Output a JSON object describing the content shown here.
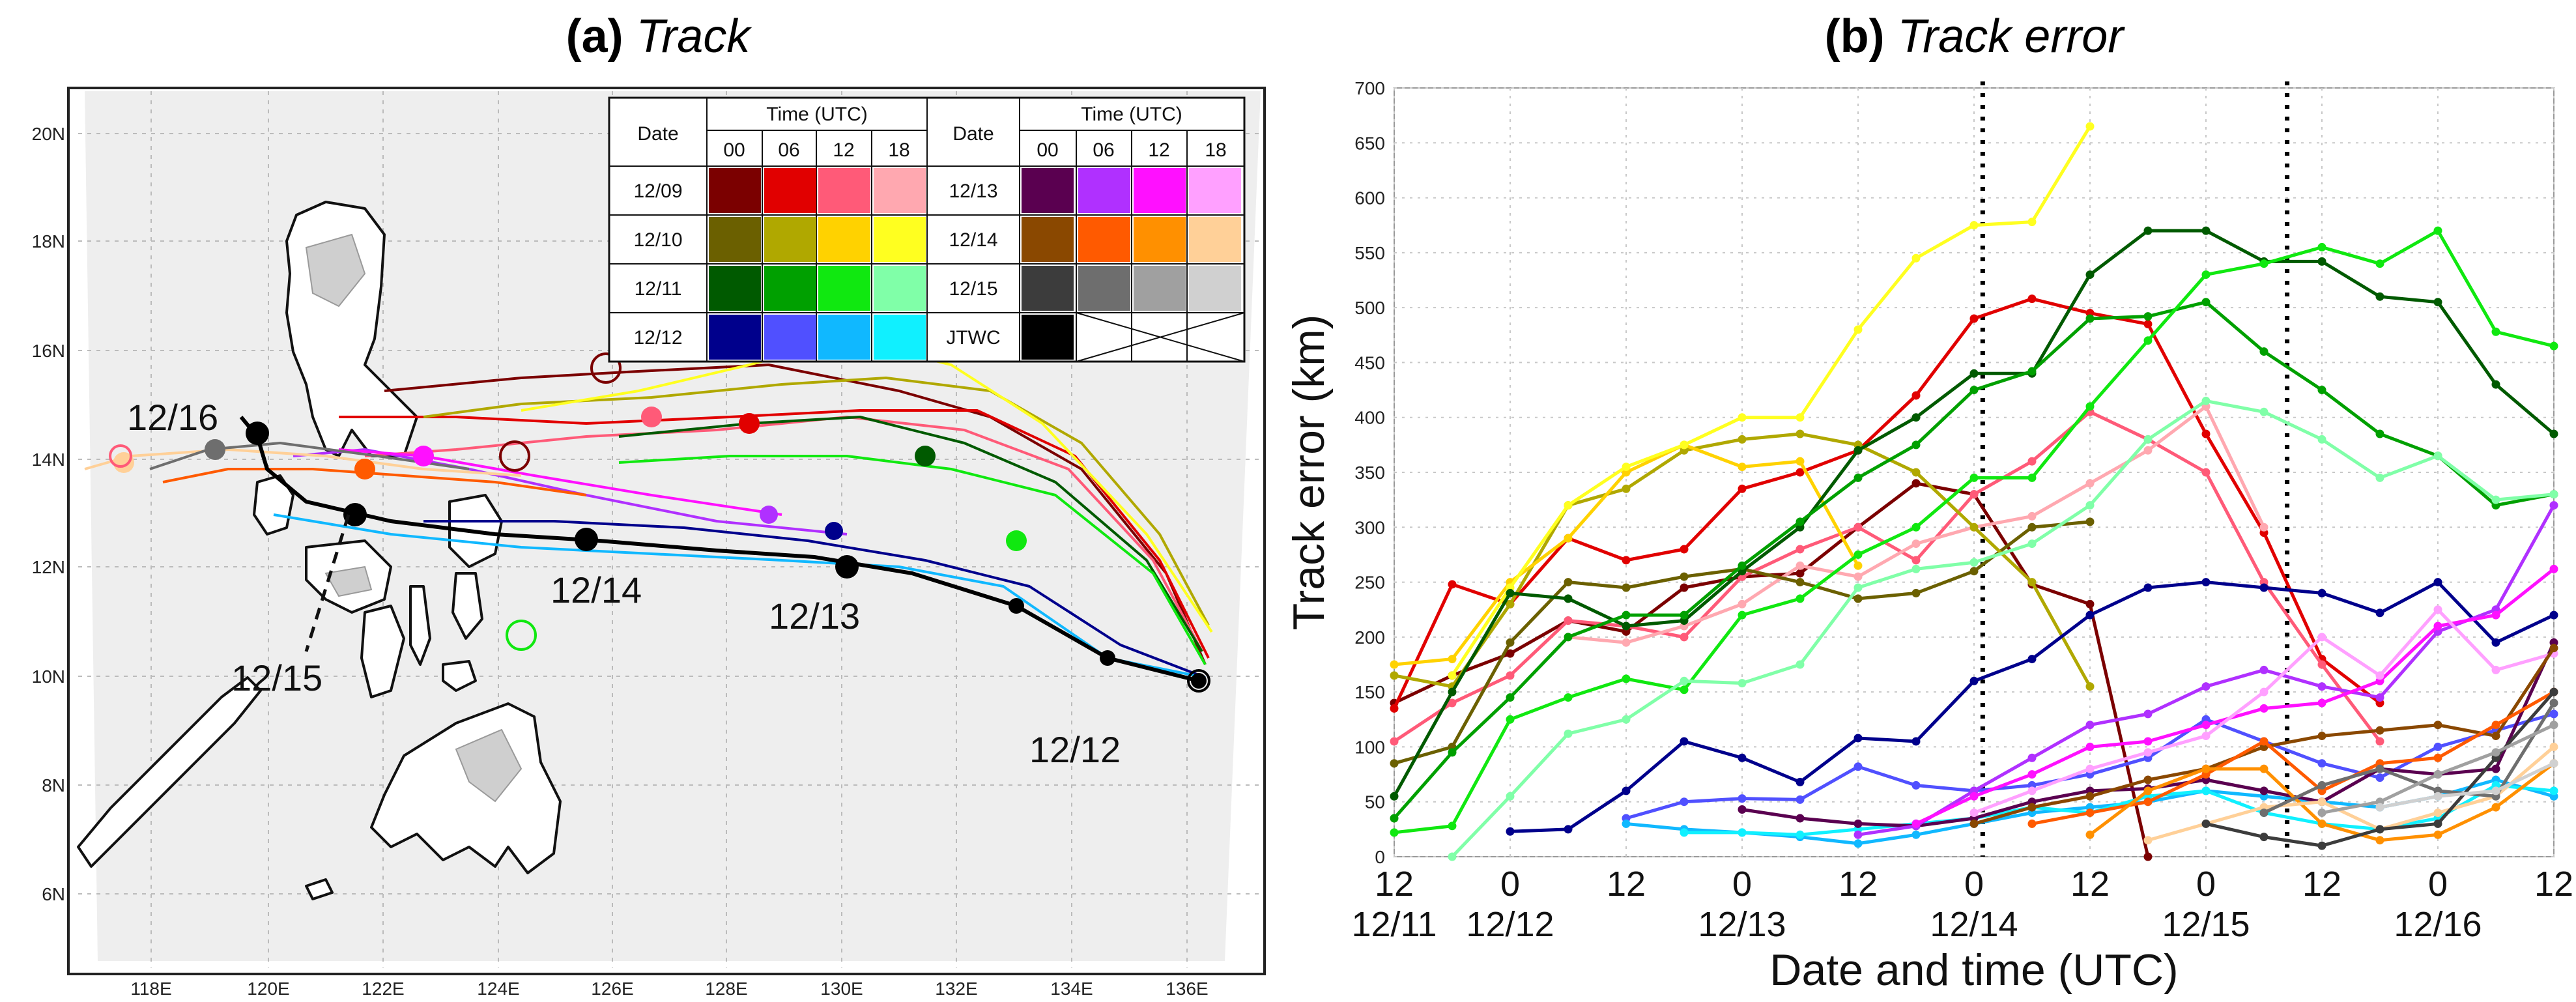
{
  "titles": {
    "a_prefix": "(a)",
    "a_name": "Track",
    "b_prefix": "(b)",
    "b_name": "Track error"
  },
  "map": {
    "lat_labels": [
      "20N",
      "18N",
      "16N",
      "14N",
      "12N",
      "10N",
      "8N",
      "6N"
    ],
    "lon_labels": [
      "118E",
      "120E",
      "122E",
      "124E",
      "126E",
      "128E",
      "130E",
      "132E",
      "134E",
      "136E"
    ],
    "annotations": [
      "12/16",
      "12/15",
      "12/14",
      "12/13",
      "12/12"
    ]
  },
  "legend_table": {
    "left": {
      "header_date": "Date",
      "header_time": "Time (UTC)",
      "hours": [
        "00",
        "06",
        "12",
        "18"
      ],
      "rows": [
        {
          "date": "12/09",
          "colors": [
            "#7b0000",
            "#e10000",
            "#ff5a78",
            "#ffa8b0"
          ]
        },
        {
          "date": "12/10",
          "colors": [
            "#6b6000",
            "#b0a800",
            "#ffd200",
            "#ffff20"
          ]
        },
        {
          "date": "12/11",
          "colors": [
            "#005a00",
            "#00a000",
            "#10e810",
            "#80ffa8"
          ]
        },
        {
          "date": "12/12",
          "colors": [
            "#00008c",
            "#5050ff",
            "#10b8ff",
            "#10f0ff"
          ]
        }
      ]
    },
    "right": {
      "header_date": "Date",
      "header_time": "Time (UTC)",
      "hours": [
        "00",
        "06",
        "12",
        "18"
      ],
      "rows": [
        {
          "date": "12/13",
          "colors": [
            "#5a0050",
            "#b030ff",
            "#ff10ff",
            "#ffa0ff"
          ]
        },
        {
          "date": "12/14",
          "colors": [
            "#8a4800",
            "#ff5a00",
            "#ff9000",
            "#ffd098"
          ]
        },
        {
          "date": "12/15",
          "colors": [
            "#3c3c3c",
            "#6e6e6e",
            "#a0a0a0",
            "#d0d0d0"
          ]
        },
        {
          "date": "JTWC",
          "colors": [
            "#000000"
          ]
        }
      ]
    }
  },
  "chart_data": {
    "type": "line",
    "title": "Track error",
    "xlabel": "Date and time (UTC)",
    "ylabel": "Track error (km)",
    "ylim": [
      0,
      700
    ],
    "xlim": [
      0,
      20
    ],
    "yticks": [
      0,
      50,
      100,
      150,
      200,
      250,
      300,
      350,
      400,
      450,
      500,
      550,
      600,
      650,
      700
    ],
    "hour_ticks": [
      {
        "x": 0,
        "label": "12"
      },
      {
        "x": 2,
        "label": "0"
      },
      {
        "x": 4,
        "label": "12"
      },
      {
        "x": 6,
        "label": "0"
      },
      {
        "x": 8,
        "label": "12"
      },
      {
        "x": 10,
        "label": "0"
      },
      {
        "x": 12,
        "label": "12"
      },
      {
        "x": 14,
        "label": "0"
      },
      {
        "x": 16,
        "label": "12"
      },
      {
        "x": 18,
        "label": "0"
      },
      {
        "x": 20,
        "label": "12"
      }
    ],
    "date_ticks": [
      {
        "x": 0,
        "label": "12/11"
      },
      {
        "x": 2,
        "label": "12/12"
      },
      {
        "x": 6,
        "label": "12/13"
      },
      {
        "x": 10,
        "label": "12/14"
      },
      {
        "x": 14,
        "label": "12/15"
      },
      {
        "x": 18,
        "label": "12/16"
      }
    ],
    "vlines": [
      10.15,
      15.4
    ],
    "x_unit_note": "x in 6-hour steps from 12/11 12 UTC",
    "series": [
      {
        "name": "12/09 00",
        "color": "#7b0000",
        "x": [
          0,
          1,
          2,
          3,
          4,
          5,
          6,
          7,
          8,
          9,
          10,
          11,
          12,
          13
        ],
        "values": [
          140,
          165,
          185,
          215,
          205,
          245,
          255,
          258,
          300,
          340,
          330,
          248,
          230,
          0
        ]
      },
      {
        "name": "12/09 06",
        "color": "#e10000",
        "x": [
          0,
          1,
          2,
          3,
          4,
          5,
          6,
          7,
          8,
          9,
          10,
          11,
          12,
          13,
          14,
          15,
          16,
          17
        ],
        "values": [
          135,
          248,
          230,
          290,
          270,
          280,
          335,
          350,
          370,
          420,
          490,
          508,
          495,
          485,
          385,
          295,
          180,
          140
        ]
      },
      {
        "name": "12/09 12",
        "color": "#ff5a78",
        "x": [
          0,
          1,
          2,
          3,
          4,
          5,
          6,
          7,
          8,
          9,
          10,
          11,
          12,
          13,
          14,
          15,
          16,
          17
        ],
        "values": [
          105,
          140,
          165,
          215,
          210,
          200,
          255,
          280,
          300,
          270,
          330,
          360,
          405,
          380,
          350,
          250,
          175,
          105
        ]
      },
      {
        "name": "12/09 18",
        "color": "#ffa8b0",
        "x": [
          3,
          4,
          5,
          6,
          7,
          8,
          9,
          10,
          11,
          12,
          13,
          14,
          15
        ],
        "values": [
          200,
          195,
          210,
          230,
          265,
          255,
          285,
          300,
          310,
          340,
          370,
          410,
          300
        ]
      },
      {
        "name": "12/10 00",
        "color": "#6b6000",
        "x": [
          0,
          1,
          2,
          3,
          4,
          5,
          6,
          7,
          8,
          9,
          10,
          11,
          12
        ],
        "values": [
          85,
          100,
          195,
          250,
          245,
          255,
          262,
          250,
          235,
          240,
          260,
          300,
          305
        ]
      },
      {
        "name": "12/10 06",
        "color": "#b0a800",
        "x": [
          0,
          1,
          2,
          3,
          4,
          5,
          6,
          7,
          8,
          9,
          10,
          11,
          12
        ],
        "values": [
          165,
          155,
          230,
          320,
          335,
          370,
          380,
          385,
          375,
          350,
          300,
          250,
          155
        ]
      },
      {
        "name": "12/10 12",
        "color": "#ffd200",
        "x": [
          0,
          1,
          2,
          3,
          4,
          5,
          6,
          7,
          8
        ],
        "values": [
          175,
          180,
          250,
          290,
          350,
          375,
          355,
          360,
          265
        ]
      },
      {
        "name": "12/10 18",
        "color": "#ffff20",
        "x": [
          1,
          2,
          3,
          4,
          5,
          6,
          7,
          8,
          9,
          10,
          11,
          12
        ],
        "values": [
          165,
          245,
          320,
          355,
          375,
          400,
          400,
          480,
          545,
          575,
          578,
          665
        ]
      },
      {
        "name": "12/11 00",
        "color": "#005a00",
        "x": [
          0,
          1,
          2,
          3,
          4,
          5,
          6,
          7,
          8,
          9,
          10,
          11,
          12,
          13,
          14,
          15,
          16,
          17,
          18,
          19,
          20
        ],
        "values": [
          55,
          150,
          240,
          235,
          210,
          215,
          260,
          300,
          370,
          400,
          440,
          440,
          530,
          570,
          570,
          542,
          542,
          510,
          505,
          430,
          385
        ]
      },
      {
        "name": "12/11 06",
        "color": "#00a000",
        "x": [
          0,
          1,
          2,
          3,
          4,
          5,
          6,
          7,
          8,
          9,
          10,
          11,
          12,
          13,
          14,
          15,
          16,
          17,
          18,
          19,
          20
        ],
        "values": [
          35,
          95,
          145,
          200,
          220,
          220,
          265,
          305,
          345,
          375,
          425,
          442,
          490,
          492,
          505,
          460,
          425,
          385,
          365,
          320,
          330
        ]
      },
      {
        "name": "12/11 12",
        "color": "#10e810",
        "x": [
          0,
          1,
          2,
          3,
          4,
          5,
          6,
          7,
          8,
          9,
          10,
          11,
          12,
          13,
          14,
          15,
          16,
          17,
          18,
          19,
          20
        ],
        "values": [
          22,
          28,
          125,
          145,
          162,
          152,
          220,
          235,
          275,
          300,
          345,
          345,
          410,
          470,
          530,
          540,
          555,
          540,
          570,
          478,
          465
        ]
      },
      {
        "name": "12/11 18",
        "color": "#80ffa8",
        "x": [
          1,
          2,
          3,
          4,
          5,
          6,
          7,
          8,
          9,
          10,
          11,
          12,
          13,
          14,
          15,
          16,
          17,
          18,
          19,
          20
        ],
        "values": [
          0,
          55,
          112,
          125,
          160,
          158,
          175,
          245,
          262,
          268,
          285,
          320,
          380,
          415,
          405,
          380,
          345,
          365,
          325,
          330
        ]
      },
      {
        "name": "12/12 00",
        "color": "#00008c",
        "x": [
          2,
          3,
          4,
          5,
          6,
          7,
          8,
          9,
          10,
          11,
          12,
          13,
          14,
          15,
          16,
          17,
          18,
          19,
          20
        ],
        "values": [
          23,
          25,
          60,
          105,
          90,
          68,
          108,
          105,
          160,
          180,
          220,
          245,
          250,
          245,
          240,
          222,
          250,
          195,
          220
        ]
      },
      {
        "name": "12/12 06",
        "color": "#5050ff",
        "x": [
          4,
          5,
          6,
          7,
          8,
          9,
          10,
          11,
          12,
          13,
          14,
          15,
          16,
          17,
          18,
          19,
          20
        ],
        "values": [
          35,
          50,
          53,
          52,
          82,
          65,
          60,
          65,
          75,
          90,
          125,
          105,
          85,
          72,
          100,
          115,
          130
        ]
      },
      {
        "name": "12/12 12",
        "color": "#10b8ff",
        "x": [
          4,
          5,
          6,
          7,
          8,
          9,
          10,
          11,
          12,
          13,
          14,
          15,
          16,
          17,
          18,
          19,
          20
        ],
        "values": [
          30,
          25,
          22,
          18,
          12,
          20,
          30,
          40,
          45,
          50,
          60,
          55,
          50,
          45,
          55,
          70,
          55
        ]
      },
      {
        "name": "12/12 18",
        "color": "#10f0ff",
        "x": [
          5,
          6,
          7,
          8,
          9,
          10,
          11,
          12,
          13,
          14,
          15,
          16,
          17,
          18,
          19,
          20
        ],
        "values": [
          22,
          22,
          20,
          25,
          30,
          35,
          45,
          40,
          55,
          60,
          40,
          30,
          25,
          35,
          65,
          60
        ]
      },
      {
        "name": "12/13 00",
        "color": "#5a0050",
        "x": [
          6,
          7,
          8,
          9,
          10,
          11,
          12,
          13,
          14,
          15,
          16,
          17,
          18,
          19,
          20
        ],
        "values": [
          43,
          35,
          30,
          28,
          35,
          50,
          60,
          62,
          70,
          60,
          50,
          80,
          75,
          80,
          195
        ]
      },
      {
        "name": "12/13 06",
        "color": "#b030ff",
        "x": [
          8,
          9,
          10,
          11,
          12,
          13,
          14,
          15,
          16,
          17,
          18,
          19,
          20
        ],
        "values": [
          20,
          28,
          60,
          90,
          120,
          130,
          155,
          170,
          155,
          145,
          205,
          225,
          320
        ]
      },
      {
        "name": "12/13 12",
        "color": "#ff10ff",
        "x": [
          9,
          10,
          11,
          12,
          13,
          14,
          15,
          16,
          17,
          18,
          19,
          20
        ],
        "values": [
          30,
          55,
          75,
          100,
          105,
          120,
          135,
          140,
          160,
          210,
          220,
          262
        ]
      },
      {
        "name": "12/13 18",
        "color": "#ffa0ff",
        "x": [
          10,
          11,
          12,
          13,
          14,
          15,
          16,
          17,
          18,
          19,
          20
        ],
        "values": [
          40,
          60,
          80,
          95,
          110,
          150,
          200,
          165,
          225,
          170,
          185
        ]
      },
      {
        "name": "12/14 00",
        "color": "#8a4800",
        "x": [
          10,
          11,
          12,
          13,
          14,
          15,
          16,
          17,
          18,
          19,
          20
        ],
        "values": [
          30,
          45,
          55,
          70,
          80,
          100,
          110,
          115,
          120,
          110,
          190
        ]
      },
      {
        "name": "12/14 06",
        "color": "#ff5a00",
        "x": [
          11,
          12,
          13,
          14,
          15,
          16,
          17,
          18,
          19,
          20
        ],
        "values": [
          30,
          40,
          50,
          75,
          105,
          60,
          85,
          90,
          120,
          150
        ]
      },
      {
        "name": "12/14 12",
        "color": "#ff9000",
        "x": [
          12,
          13,
          14,
          15,
          16,
          17,
          18,
          19,
          20
        ],
        "values": [
          20,
          60,
          80,
          80,
          30,
          15,
          20,
          45,
          85
        ]
      },
      {
        "name": "12/14 18",
        "color": "#ffd098",
        "x": [
          13,
          14,
          15,
          16,
          17,
          18,
          19,
          20
        ],
        "values": [
          15,
          30,
          45,
          50,
          25,
          40,
          55,
          100
        ]
      },
      {
        "name": "12/15 00",
        "color": "#3c3c3c",
        "x": [
          14,
          15,
          16,
          17,
          18,
          19,
          20
        ],
        "values": [
          30,
          18,
          10,
          25,
          30,
          90,
          150
        ]
      },
      {
        "name": "12/15 06",
        "color": "#6e6e6e",
        "x": [
          15,
          16,
          17,
          18,
          19,
          20
        ],
        "values": [
          40,
          65,
          80,
          60,
          55,
          140
        ]
      },
      {
        "name": "12/15 12",
        "color": "#a0a0a0",
        "x": [
          16,
          17,
          18,
          19,
          20
        ],
        "values": [
          40,
          50,
          75,
          95,
          120
        ]
      },
      {
        "name": "12/15 18",
        "color": "#d0d0d0",
        "x": [
          17,
          18,
          19,
          20
        ],
        "values": [
          45,
          55,
          60,
          85
        ]
      }
    ]
  }
}
